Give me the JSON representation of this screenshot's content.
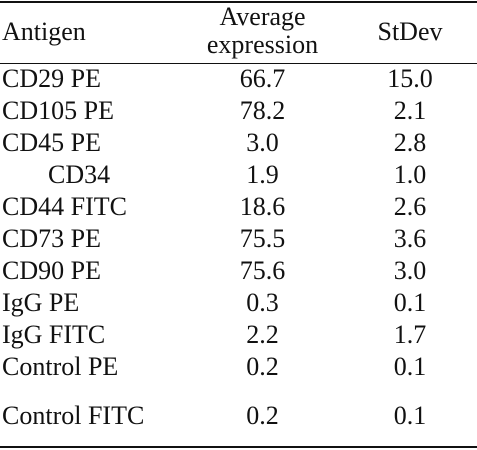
{
  "header": {
    "antigen": "Antigen",
    "avg_line1": "Average",
    "avg_line2": "expression",
    "stdev": "StDev"
  },
  "rows": [
    {
      "antigen": "CD29 PE",
      "avg": "66.7",
      "std": "15.0"
    },
    {
      "antigen": "CD105 PE",
      "avg": "78.2",
      "std": "2.1"
    },
    {
      "antigen": "CD45 PE",
      "avg": "3.0",
      "std": "2.8"
    },
    {
      "antigen": "CD34",
      "avg": "1.9",
      "std": "1.0"
    },
    {
      "antigen": "CD44 FITC",
      "avg": "18.6",
      "std": "2.6"
    },
    {
      "antigen": "CD73 PE",
      "avg": "75.5",
      "std": "3.6"
    },
    {
      "antigen": "CD90 PE",
      "avg": "75.6",
      "std": "3.0"
    },
    {
      "antigen": "IgG PE",
      "avg": "0.3",
      "std": "0.1"
    },
    {
      "antigen": "IgG FITC",
      "avg": "2.2",
      "std": "1.7"
    },
    {
      "antigen": "Control PE",
      "avg": "0.2",
      "std": "0.1"
    },
    {
      "antigen": "Control FITC",
      "avg": "0.2",
      "std": "0.1"
    }
  ]
}
